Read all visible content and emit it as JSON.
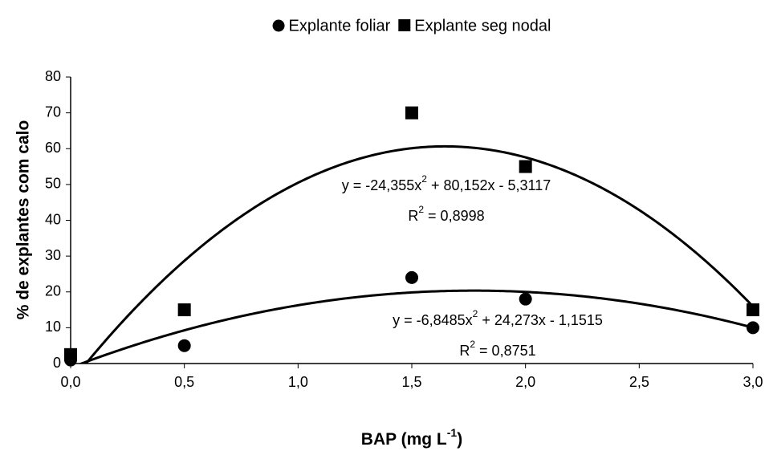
{
  "chart_data": {
    "type": "scatter",
    "x_label": [
      "BAP (mg L",
      "-1",
      ")"
    ],
    "y_label": "% de explantes com calo",
    "xlim": [
      0,
      3
    ],
    "xticks": [
      {
        "value": 0,
        "label": "0,0"
      },
      {
        "value": 0.5,
        "label": "0,5"
      },
      {
        "value": 1,
        "label": "1,0"
      },
      {
        "value": 1.5,
        "label": "1,5"
      },
      {
        "value": 2,
        "label": "2,0"
      },
      {
        "value": 2.5,
        "label": "2,5"
      },
      {
        "value": 3,
        "label": "3,0"
      }
    ],
    "ylim": [
      0,
      80
    ],
    "yticks": [
      0,
      10,
      20,
      30,
      40,
      50,
      60,
      70,
      80
    ],
    "grid": false,
    "legend": "top",
    "series": [
      {
        "name": "Explante foliar",
        "marker": "circle",
        "color": "#000000",
        "x": [
          0,
          0.5,
          1.5,
          2,
          3
        ],
        "values": [
          1,
          5,
          24,
          18,
          10
        ],
        "trendline": {
          "type": "polynomial",
          "coefficients": [
            -6.8485,
            24.273,
            -1.1515
          ],
          "equation": [
            "y = -6,8485x",
            "2",
            " + 24,273x - 1,1515"
          ],
          "r2": [
            "R",
            "2",
            " = 0,8751"
          ]
        }
      },
      {
        "name": "Explante seg nodal",
        "marker": "square",
        "color": "#000000",
        "x": [
          0,
          0.5,
          1.5,
          2,
          3
        ],
        "values": [
          2.5,
          15,
          70,
          55,
          15
        ],
        "trendline": {
          "type": "polynomial",
          "coefficients": [
            -24.355,
            80.152,
            -5.3117
          ],
          "equation": [
            "y = -24,355x",
            "2",
            " + 80,152x - 5,3117"
          ],
          "r2": [
            "R",
            "2",
            " = 0,8998"
          ]
        }
      }
    ]
  }
}
